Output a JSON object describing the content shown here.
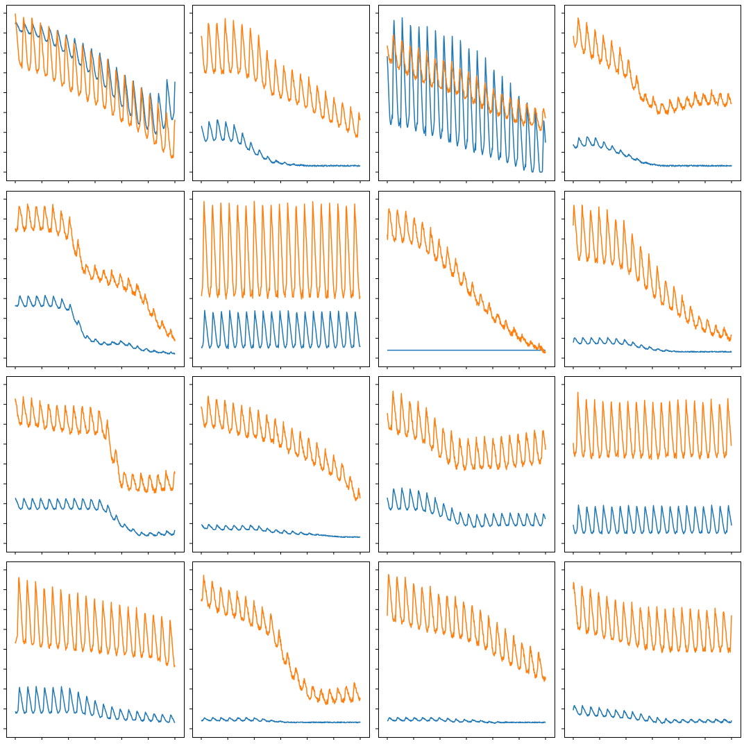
{
  "figure": {
    "layout": {
      "rows": 4,
      "cols": 4
    },
    "tick_labels_visible": false,
    "grid": false
  },
  "colors": {
    "series_a": "#1f77b4",
    "series_b": "#ff7f0e",
    "axes": "#000000"
  },
  "chart_data": [
    {
      "panel": 1,
      "type": "line",
      "ylim": [
        0,
        1
      ],
      "series": [
        {
          "color": "#1f77b4",
          "periods": 19,
          "levels": [
            0.92,
            0.9,
            0.86,
            0.8,
            0.72,
            0.64,
            0.52,
            0.42,
            0.36,
            0.5
          ],
          "amp": [
            0.05,
            0.07,
            0.1,
            0.13,
            0.16,
            0.2,
            0.22,
            0.25,
            0.26,
            0.32
          ],
          "noise": 0.005
        },
        {
          "color": "#ff7f0e",
          "periods": 19,
          "levels": [
            0.84,
            0.8,
            0.75,
            0.68,
            0.62,
            0.56,
            0.47,
            0.4,
            0.3,
            0.2
          ],
          "amp": [
            0.34,
            0.34,
            0.34,
            0.34,
            0.34,
            0.33,
            0.31,
            0.3,
            0.28,
            0.26
          ],
          "noise": 0.012
        }
      ]
    },
    {
      "panel": 2,
      "type": "line",
      "ylim": [
        0,
        1
      ],
      "series": [
        {
          "color": "#1f77b4",
          "periods": 19,
          "levels": [
            0.25,
            0.27,
            0.24,
            0.14,
            0.07,
            0.05,
            0.04,
            0.04,
            0.04,
            0.04
          ],
          "amp": [
            0.12,
            0.14,
            0.1,
            0.05,
            0.02,
            0.01,
            0.0,
            0.0,
            0.0,
            0.0
          ],
          "noise": 0.004
        },
        {
          "color": "#ff7f0e",
          "periods": 19,
          "levels": [
            0.79,
            0.79,
            0.79,
            0.74,
            0.6,
            0.55,
            0.5,
            0.42,
            0.36,
            0.29
          ],
          "amp": [
            0.34,
            0.34,
            0.34,
            0.33,
            0.23,
            0.21,
            0.2,
            0.18,
            0.17,
            0.16
          ],
          "noise": 0.012
        }
      ]
    },
    {
      "panel": 3,
      "type": "line",
      "ylim": [
        0,
        1
      ],
      "series": [
        {
          "color": "#1f77b4",
          "periods": 19,
          "levels": [
            0.64,
            0.62,
            0.58,
            0.55,
            0.5,
            0.45,
            0.38,
            0.3,
            0.22,
            0.14
          ],
          "amp": [
            0.7,
            0.7,
            0.7,
            0.7,
            0.7,
            0.68,
            0.6,
            0.52,
            0.45,
            0.38
          ],
          "noise": 0.006
        },
        {
          "color": "#ff7f0e",
          "periods": 19,
          "levels": [
            0.8,
            0.72,
            0.66,
            0.62,
            0.58,
            0.52,
            0.45,
            0.4,
            0.36,
            0.33
          ],
          "amp": [
            0.18,
            0.2,
            0.2,
            0.2,
            0.18,
            0.18,
            0.16,
            0.15,
            0.14,
            0.14
          ],
          "noise": 0.015
        }
      ]
    },
    {
      "panel": 4,
      "type": "line",
      "ylim": [
        0,
        1
      ],
      "series": [
        {
          "color": "#1f77b4",
          "periods": 19,
          "levels": [
            0.18,
            0.2,
            0.16,
            0.11,
            0.06,
            0.04,
            0.04,
            0.04,
            0.04,
            0.04
          ],
          "amp": [
            0.06,
            0.06,
            0.04,
            0.02,
            0.01,
            0.0,
            0.0,
            0.0,
            0.0,
            0.0
          ],
          "noise": 0.004
        },
        {
          "color": "#ff7f0e",
          "periods": 19,
          "levels": [
            0.9,
            0.82,
            0.75,
            0.67,
            0.47,
            0.4,
            0.43,
            0.46,
            0.47,
            0.45
          ],
          "amp": [
            0.2,
            0.2,
            0.18,
            0.15,
            0.07,
            0.08,
            0.08,
            0.08,
            0.08,
            0.08
          ],
          "noise": 0.015
        }
      ]
    },
    {
      "panel": 5,
      "type": "line",
      "ylim": [
        0,
        1
      ],
      "series": [
        {
          "color": "#1f77b4",
          "periods": 19,
          "levels": [
            0.36,
            0.36,
            0.36,
            0.33,
            0.13,
            0.09,
            0.1,
            0.06,
            0.04,
            0.03
          ],
          "amp": [
            0.07,
            0.07,
            0.07,
            0.06,
            0.03,
            0.02,
            0.02,
            0.02,
            0.01,
            0.01
          ],
          "noise": 0.004
        },
        {
          "color": "#ff7f0e",
          "periods": 19,
          "levels": [
            0.89,
            0.89,
            0.88,
            0.83,
            0.55,
            0.52,
            0.48,
            0.42,
            0.24,
            0.12
          ],
          "amp": [
            0.17,
            0.17,
            0.17,
            0.16,
            0.08,
            0.08,
            0.08,
            0.07,
            0.06,
            0.04
          ],
          "noise": 0.015
        }
      ]
    },
    {
      "panel": 6,
      "type": "line",
      "ylim": [
        0,
        1
      ],
      "series": [
        {
          "color": "#1f77b4",
          "periods": 19,
          "levels": [
            0.18,
            0.18,
            0.18,
            0.18,
            0.18,
            0.18,
            0.18,
            0.18,
            0.18,
            0.18
          ],
          "amp": [
            0.24,
            0.24,
            0.24,
            0.24,
            0.24,
            0.24,
            0.24,
            0.24,
            0.24,
            0.24
          ],
          "noise": 0.004
        },
        {
          "color": "#ff7f0e",
          "periods": 19,
          "levels": [
            0.68,
            0.68,
            0.68,
            0.68,
            0.68,
            0.68,
            0.68,
            0.68,
            0.68,
            0.68
          ],
          "amp": [
            0.62,
            0.62,
            0.62,
            0.62,
            0.62,
            0.62,
            0.62,
            0.62,
            0.62,
            0.62
          ],
          "noise": 0.015
        }
      ]
    },
    {
      "panel": 7,
      "type": "line",
      "ylim": [
        0,
        1
      ],
      "series": [
        {
          "color": "#1f77b4",
          "periods": 1,
          "levels": [
            0.05,
            0.05,
            0.05,
            0.05,
            0.05,
            0.05,
            0.05,
            0.05,
            0.05,
            0.05
          ],
          "amp": [
            0,
            0,
            0,
            0,
            0,
            0,
            0,
            0,
            0,
            0
          ],
          "noise": 0.0
        },
        {
          "color": "#ff7f0e",
          "periods": 19,
          "levels": [
            0.85,
            0.83,
            0.78,
            0.67,
            0.55,
            0.4,
            0.28,
            0.18,
            0.1,
            0.05
          ],
          "amp": [
            0.22,
            0.2,
            0.18,
            0.15,
            0.12,
            0.09,
            0.07,
            0.05,
            0.03,
            0.02
          ],
          "noise": 0.015
        }
      ]
    },
    {
      "panel": 8,
      "type": "line",
      "ylim": [
        0,
        1
      ],
      "series": [
        {
          "color": "#1f77b4",
          "periods": 19,
          "levels": [
            0.11,
            0.11,
            0.11,
            0.1,
            0.07,
            0.05,
            0.04,
            0.04,
            0.04,
            0.04
          ],
          "amp": [
            0.04,
            0.04,
            0.04,
            0.03,
            0.02,
            0.01,
            0.0,
            0.0,
            0.0,
            0.0
          ],
          "noise": 0.003
        },
        {
          "color": "#ff7f0e",
          "periods": 19,
          "levels": [
            0.8,
            0.78,
            0.76,
            0.7,
            0.57,
            0.44,
            0.34,
            0.24,
            0.18,
            0.14
          ],
          "amp": [
            0.35,
            0.35,
            0.34,
            0.3,
            0.25,
            0.2,
            0.15,
            0.1,
            0.07,
            0.05
          ],
          "noise": 0.015
        }
      ]
    },
    {
      "panel": 9,
      "type": "line",
      "ylim": [
        0,
        1
      ],
      "series": [
        {
          "color": "#1f77b4",
          "periods": 19,
          "levels": [
            0.25,
            0.25,
            0.25,
            0.25,
            0.25,
            0.24,
            0.12,
            0.06,
            0.06,
            0.07
          ],
          "amp": [
            0.07,
            0.07,
            0.07,
            0.07,
            0.07,
            0.07,
            0.03,
            0.02,
            0.02,
            0.03
          ],
          "noise": 0.004
        },
        {
          "color": "#ff7f0e",
          "periods": 19,
          "levels": [
            0.84,
            0.82,
            0.8,
            0.78,
            0.78,
            0.76,
            0.41,
            0.38,
            0.38,
            0.4
          ],
          "amp": [
            0.17,
            0.17,
            0.17,
            0.17,
            0.17,
            0.17,
            0.12,
            0.11,
            0.11,
            0.12
          ],
          "noise": 0.015
        }
      ]
    },
    {
      "panel": 10,
      "type": "line",
      "ylim": [
        0,
        1
      ],
      "series": [
        {
          "color": "#1f77b4",
          "periods": 19,
          "levels": [
            0.11,
            0.1,
            0.1,
            0.1,
            0.08,
            0.07,
            0.06,
            0.05,
            0.04,
            0.04
          ],
          "amp": [
            0.03,
            0.03,
            0.03,
            0.03,
            0.02,
            0.02,
            0.01,
            0.0,
            0.0,
            0.0
          ],
          "noise": 0.003
        },
        {
          "color": "#ff7f0e",
          "periods": 19,
          "levels": [
            0.84,
            0.82,
            0.78,
            0.75,
            0.72,
            0.65,
            0.6,
            0.52,
            0.45,
            0.28
          ],
          "amp": [
            0.2,
            0.2,
            0.19,
            0.18,
            0.17,
            0.16,
            0.15,
            0.14,
            0.12,
            0.08
          ],
          "noise": 0.015
        }
      ]
    },
    {
      "panel": 11,
      "type": "line",
      "ylim": [
        0,
        1
      ],
      "series": [
        {
          "color": "#1f77b4",
          "periods": 19,
          "levels": [
            0.28,
            0.28,
            0.27,
            0.22,
            0.16,
            0.14,
            0.15,
            0.15,
            0.15,
            0.15
          ],
          "amp": [
            0.14,
            0.14,
            0.13,
            0.1,
            0.08,
            0.08,
            0.08,
            0.08,
            0.08,
            0.08
          ],
          "noise": 0.004
        },
        {
          "color": "#ff7f0e",
          "periods": 19,
          "levels": [
            0.84,
            0.8,
            0.76,
            0.65,
            0.57,
            0.56,
            0.57,
            0.58,
            0.6,
            0.62
          ],
          "amp": [
            0.25,
            0.25,
            0.24,
            0.22,
            0.2,
            0.2,
            0.2,
            0.21,
            0.22,
            0.22
          ],
          "noise": 0.015
        }
      ]
    },
    {
      "panel": 12,
      "type": "line",
      "ylim": [
        0,
        1
      ],
      "series": [
        {
          "color": "#1f77b4",
          "periods": 19,
          "levels": [
            0.15,
            0.15,
            0.15,
            0.15,
            0.15,
            0.15,
            0.15,
            0.15,
            0.15,
            0.15
          ],
          "amp": [
            0.18,
            0.18,
            0.18,
            0.18,
            0.18,
            0.18,
            0.18,
            0.18,
            0.18,
            0.18
          ],
          "noise": 0.004
        },
        {
          "color": "#ff7f0e",
          "periods": 19,
          "levels": [
            0.75,
            0.72,
            0.72,
            0.72,
            0.72,
            0.72,
            0.72,
            0.72,
            0.72,
            0.72
          ],
          "amp": [
            0.4,
            0.37,
            0.37,
            0.37,
            0.37,
            0.37,
            0.37,
            0.37,
            0.37,
            0.37
          ],
          "noise": 0.015
        }
      ]
    },
    {
      "panel": 13,
      "type": "line",
      "ylim": [
        0,
        1
      ],
      "series": [
        {
          "color": "#1f77b4",
          "periods": 19,
          "levels": [
            0.18,
            0.18,
            0.18,
            0.18,
            0.15,
            0.11,
            0.09,
            0.08,
            0.07,
            0.06
          ],
          "amp": [
            0.17,
            0.17,
            0.17,
            0.17,
            0.12,
            0.09,
            0.07,
            0.06,
            0.05,
            0.05
          ],
          "noise": 0.004
        },
        {
          "color": "#ff7f0e",
          "periods": 19,
          "levels": [
            0.76,
            0.72,
            0.7,
            0.68,
            0.66,
            0.64,
            0.62,
            0.6,
            0.58,
            0.52
          ],
          "amp": [
            0.45,
            0.42,
            0.4,
            0.38,
            0.36,
            0.34,
            0.32,
            0.3,
            0.3,
            0.3
          ],
          "noise": 0.012
        }
      ]
    },
    {
      "panel": 14,
      "type": "line",
      "ylim": [
        0,
        1
      ],
      "series": [
        {
          "color": "#1f77b4",
          "periods": 19,
          "levels": [
            0.06,
            0.06,
            0.06,
            0.06,
            0.05,
            0.04,
            0.04,
            0.04,
            0.04,
            0.04
          ],
          "amp": [
            0.02,
            0.02,
            0.02,
            0.02,
            0.01,
            0.0,
            0.0,
            0.0,
            0.0,
            0.0
          ],
          "noise": 0.003
        },
        {
          "color": "#ff7f0e",
          "periods": 19,
          "levels": [
            0.88,
            0.82,
            0.78,
            0.72,
            0.65,
            0.4,
            0.24,
            0.2,
            0.22,
            0.24
          ],
          "amp": [
            0.18,
            0.17,
            0.16,
            0.15,
            0.14,
            0.1,
            0.08,
            0.08,
            0.1,
            0.12
          ],
          "noise": 0.015
        }
      ]
    },
    {
      "panel": 15,
      "type": "line",
      "ylim": [
        0,
        1
      ],
      "series": [
        {
          "color": "#1f77b4",
          "periods": 19,
          "levels": [
            0.06,
            0.06,
            0.06,
            0.06,
            0.05,
            0.05,
            0.04,
            0.04,
            0.04,
            0.04
          ],
          "amp": [
            0.02,
            0.02,
            0.02,
            0.02,
            0.02,
            0.01,
            0.01,
            0.0,
            0.0,
            0.0
          ],
          "noise": 0.003
        },
        {
          "color": "#ff7f0e",
          "periods": 19,
          "levels": [
            0.84,
            0.8,
            0.76,
            0.73,
            0.7,
            0.66,
            0.58,
            0.5,
            0.44,
            0.38
          ],
          "amp": [
            0.3,
            0.3,
            0.28,
            0.27,
            0.26,
            0.24,
            0.22,
            0.2,
            0.18,
            0.16
          ],
          "noise": 0.015
        }
      ]
    },
    {
      "panel": 16,
      "type": "line",
      "ylim": [
        0,
        1
      ],
      "series": [
        {
          "color": "#1f77b4",
          "periods": 19,
          "levels": [
            0.12,
            0.11,
            0.1,
            0.09,
            0.07,
            0.05,
            0.05,
            0.05,
            0.05,
            0.05
          ],
          "amp": [
            0.06,
            0.06,
            0.05,
            0.05,
            0.04,
            0.03,
            0.02,
            0.02,
            0.02,
            0.02
          ],
          "noise": 0.004
        },
        {
          "color": "#ff7f0e",
          "periods": 19,
          "levels": [
            0.78,
            0.74,
            0.7,
            0.66,
            0.64,
            0.62,
            0.62,
            0.62,
            0.62,
            0.62
          ],
          "amp": [
            0.3,
            0.3,
            0.28,
            0.27,
            0.27,
            0.27,
            0.27,
            0.27,
            0.27,
            0.27
          ],
          "noise": 0.015
        }
      ]
    }
  ]
}
